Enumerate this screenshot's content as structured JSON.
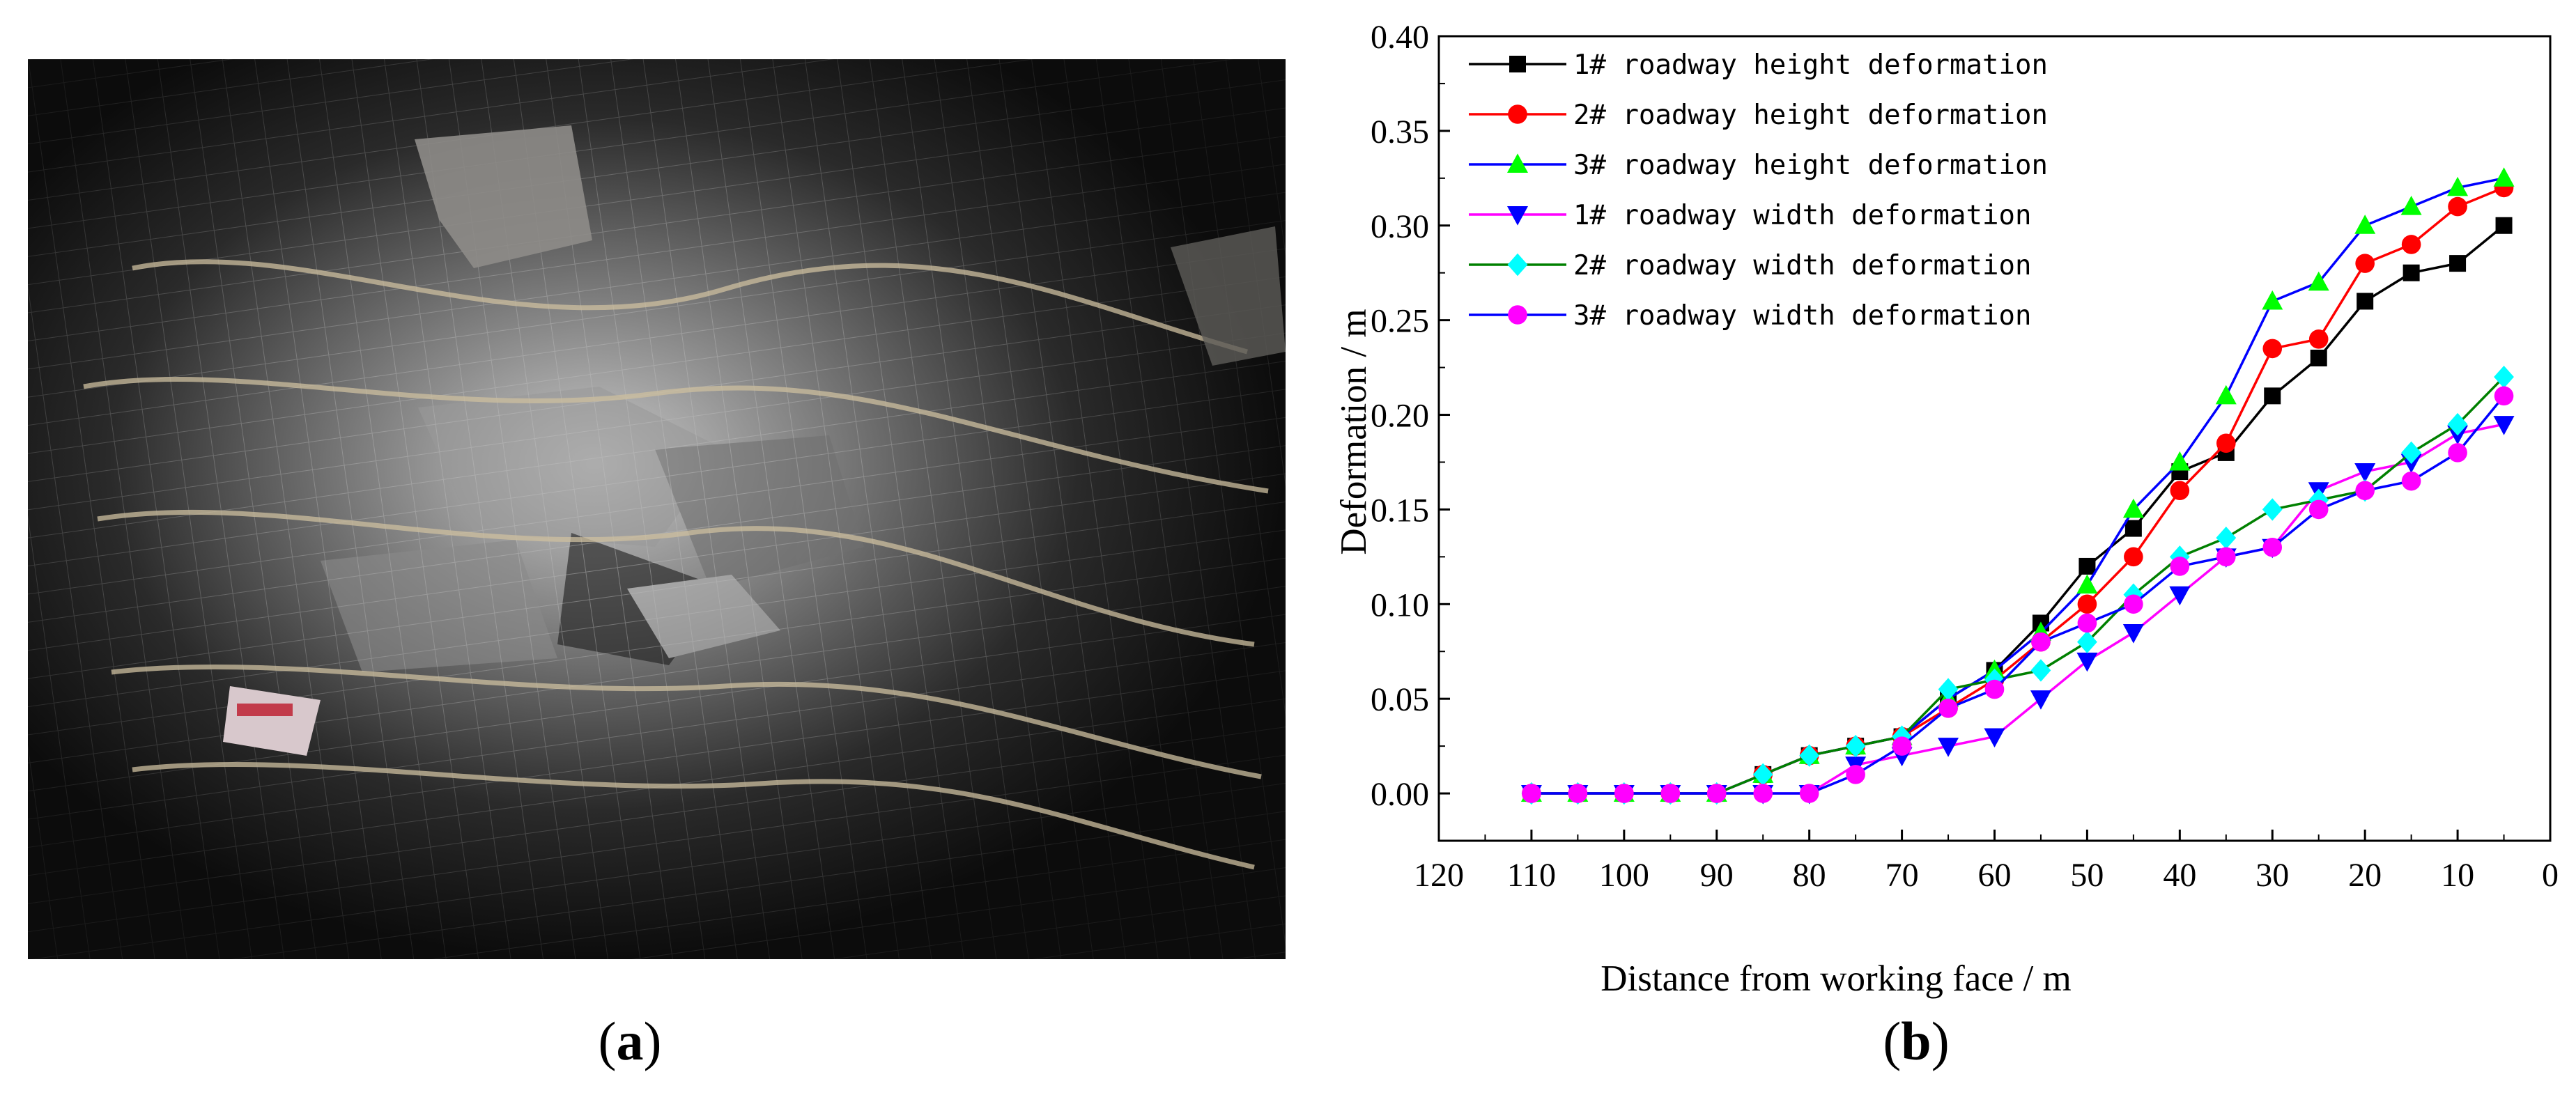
{
  "captions": {
    "a_letter": "a",
    "b_letter": "b"
  },
  "photo": {
    "description_icon": "roadway-photo",
    "colors": {
      "dark": "#111111",
      "light": "#d8d8d8"
    }
  },
  "chart_data": {
    "type": "line",
    "title": "",
    "xlabel": "Distance from working face / m",
    "ylabel": "Deformation  / m",
    "xlim": [
      120,
      0
    ],
    "ylim": [
      -0.025,
      0.4
    ],
    "x_reversed": true,
    "xticks": [
      "120",
      "110",
      "100",
      "90",
      "80",
      "70",
      "60",
      "50",
      "40",
      "30",
      "20",
      "10",
      "0"
    ],
    "yticks": [
      "0.00",
      "0.05",
      "0.10",
      "0.15",
      "0.20",
      "0.25",
      "0.30",
      "0.35",
      "0.40"
    ],
    "legend_position": "top-left",
    "grid": false,
    "x": [
      110,
      105,
      100,
      95,
      90,
      85,
      80,
      75,
      70,
      65,
      60,
      55,
      50,
      45,
      40,
      35,
      30,
      25,
      20,
      15,
      10,
      5
    ],
    "series": [
      {
        "name": "1# roadway height deformation",
        "color": "#000000",
        "marker": "square",
        "values": [
          0,
          0,
          0,
          0,
          0,
          0.01,
          0.02,
          0.025,
          0.03,
          0.05,
          0.065,
          0.09,
          0.12,
          0.14,
          0.17,
          0.18,
          0.21,
          0.23,
          0.26,
          0.275,
          0.28,
          0.3
        ]
      },
      {
        "name": "2# roadway height deformation",
        "color": "#ff0000",
        "marker": "circle",
        "values": [
          0,
          0,
          0,
          0,
          0,
          0.01,
          0.02,
          0.025,
          0.03,
          0.045,
          0.06,
          0.08,
          0.1,
          0.125,
          0.16,
          0.185,
          0.235,
          0.24,
          0.28,
          0.29,
          0.31,
          0.32
        ]
      },
      {
        "name": "3# roadway height deformation",
        "color": "#0000ff",
        "marker": "triangle-up",
        "marker_color": "#00ff00",
        "values": [
          0,
          0,
          0,
          0,
          0,
          0.01,
          0.02,
          0.025,
          0.03,
          0.05,
          0.065,
          0.085,
          0.11,
          0.15,
          0.175,
          0.21,
          0.26,
          0.27,
          0.3,
          0.31,
          0.32,
          0.325
        ]
      },
      {
        "name": "1# roadway width deformation",
        "color": "#ff00ff",
        "marker": "triangle-down",
        "marker_color": "#0000ff",
        "values": [
          0,
          0,
          0,
          0,
          0,
          0,
          0,
          0.015,
          0.02,
          0.025,
          0.03,
          0.05,
          0.07,
          0.085,
          0.105,
          0.125,
          0.13,
          0.16,
          0.17,
          0.175,
          0.19,
          0.195
        ]
      },
      {
        "name": "2# roadway width deformation",
        "color": "#008000",
        "marker": "diamond",
        "marker_color": "#00ffff",
        "values": [
          0,
          0,
          0,
          0,
          0,
          0.01,
          0.02,
          0.025,
          0.03,
          0.055,
          0.06,
          0.065,
          0.08,
          0.105,
          0.125,
          0.135,
          0.15,
          0.155,
          0.16,
          0.18,
          0.195,
          0.22
        ]
      },
      {
        "name": "3# roadway width deformation",
        "color": "#0000ff",
        "marker": "circle",
        "marker_color": "#ff00ff",
        "values": [
          0,
          0,
          0,
          0,
          0,
          0,
          0,
          0.01,
          0.025,
          0.045,
          0.055,
          0.08,
          0.09,
          0.1,
          0.12,
          0.125,
          0.13,
          0.15,
          0.16,
          0.165,
          0.18,
          0.21
        ]
      }
    ]
  }
}
